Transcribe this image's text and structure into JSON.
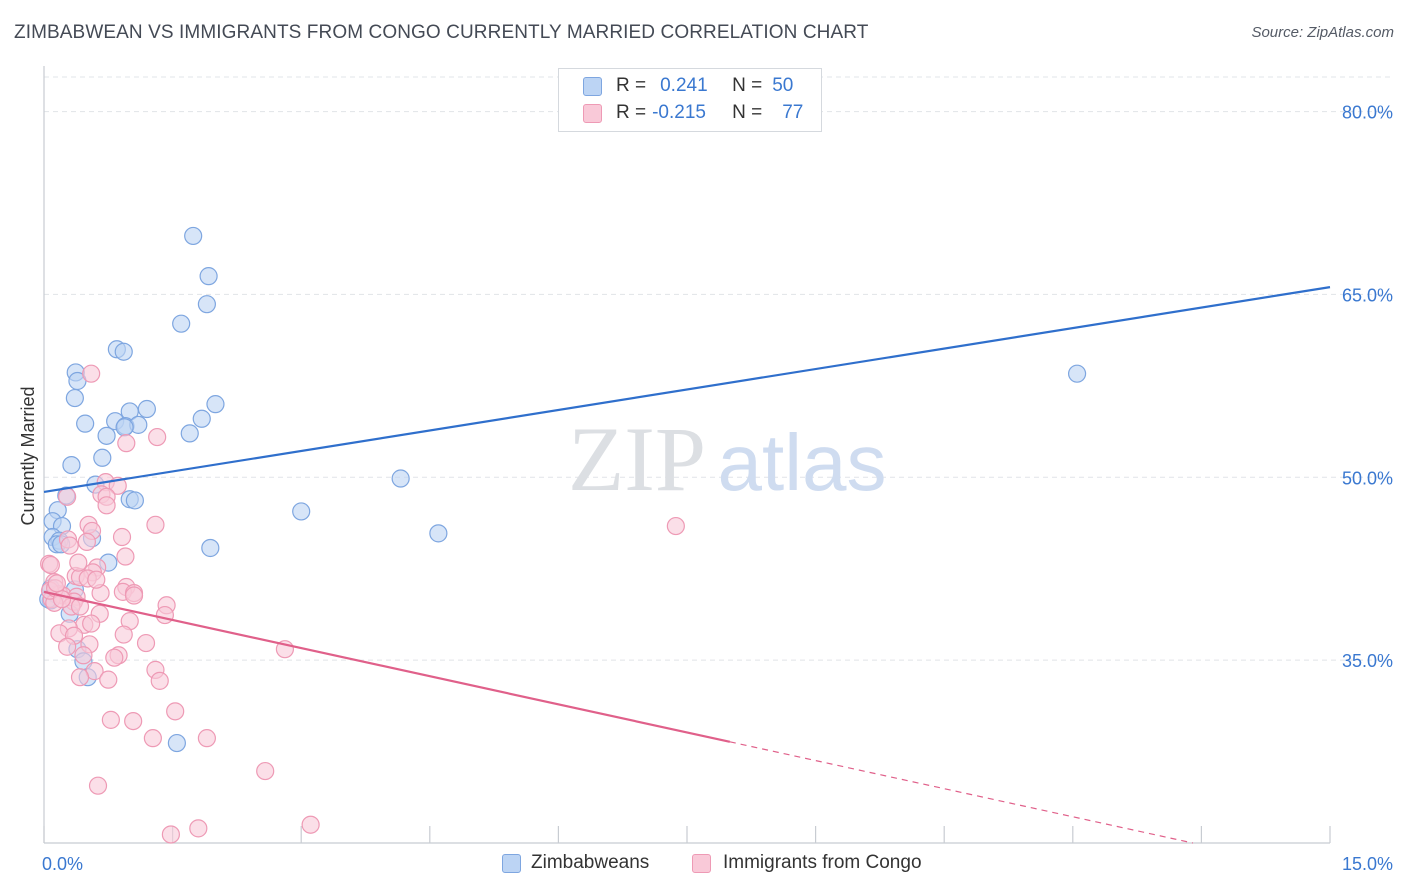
{
  "title": "ZIMBABWEAN VS IMMIGRANTS FROM CONGO CURRENTLY MARRIED CORRELATION CHART",
  "source": "Source: ZipAtlas.com",
  "watermark": {
    "zip": "ZIP",
    "atlas": "atlas"
  },
  "legend": {
    "blue": {
      "r_label": "R =",
      "r_value": "0.241",
      "n_label": "N =",
      "n_value": "50"
    },
    "pink": {
      "r_label": "R =",
      "r_value": "-0.215",
      "n_label": "N =",
      "n_value": "77"
    }
  },
  "bottom_legend": {
    "blue": "Zimbabweans",
    "pink": "Immigrants from Congo"
  },
  "colors": {
    "blue_fill": "#bcd4f4",
    "blue_stroke": "#7ea6e0",
    "blue_line": "#2f6fcc",
    "pink_fill": "#f9c9d8",
    "pink_stroke": "#ee9ab5",
    "pink_line": "#e0608a",
    "grid": "#e1e4e8",
    "tick_text": "#3a78d0"
  },
  "chart_data": {
    "type": "scatter",
    "title": "ZIMBABWEAN VS IMMIGRANTS FROM CONGO CURRENTLY MARRIED CORRELATION CHART",
    "xlabel": "",
    "ylabel": "Currently Married",
    "xlim": [
      0,
      15
    ],
    "ylim": [
      20,
      83
    ],
    "x_tick_labels": [
      {
        "value": 0,
        "label": "0.0%"
      },
      {
        "value": 15,
        "label": "15.0%"
      }
    ],
    "y_tick_labels": [
      {
        "value": 80,
        "label": "80.0%"
      },
      {
        "value": 65,
        "label": "65.0%"
      },
      {
        "value": 50,
        "label": "50.0%"
      },
      {
        "value": 35,
        "label": "35.0%"
      }
    ],
    "x_minor_ticks": [
      0,
      1.5,
      3,
      4.5,
      6,
      7.5,
      9,
      10.5,
      12,
      13.5,
      15
    ],
    "series": [
      {
        "name": "Zimbabweans",
        "color": "blue",
        "points": [
          [
            1.74,
            69.8
          ],
          [
            1.92,
            66.5
          ],
          [
            1.9,
            64.2
          ],
          [
            1.6,
            62.6
          ],
          [
            0.85,
            60.5
          ],
          [
            0.93,
            60.3
          ],
          [
            0.37,
            58.6
          ],
          [
            0.39,
            57.9
          ],
          [
            0.36,
            56.5
          ],
          [
            1.2,
            55.6
          ],
          [
            1.0,
            55.4
          ],
          [
            2.0,
            56.0
          ],
          [
            0.48,
            54.4
          ],
          [
            0.83,
            54.6
          ],
          [
            0.95,
            54.2
          ],
          [
            1.1,
            54.3
          ],
          [
            0.94,
            54.1
          ],
          [
            1.84,
            54.8
          ],
          [
            0.73,
            53.4
          ],
          [
            1.7,
            53.6
          ],
          [
            0.68,
            51.6
          ],
          [
            0.32,
            51.0
          ],
          [
            0.6,
            49.4
          ],
          [
            4.16,
            49.9
          ],
          [
            0.26,
            48.5
          ],
          [
            1.0,
            48.2
          ],
          [
            1.06,
            48.1
          ],
          [
            0.16,
            47.3
          ],
          [
            0.1,
            46.4
          ],
          [
            0.21,
            46.0
          ],
          [
            3.0,
            47.2
          ],
          [
            4.6,
            45.4
          ],
          [
            0.1,
            45.1
          ],
          [
            0.18,
            44.8
          ],
          [
            0.15,
            44.5
          ],
          [
            0.2,
            44.5
          ],
          [
            0.56,
            45.0
          ],
          [
            1.94,
            44.2
          ],
          [
            0.75,
            43.0
          ],
          [
            0.36,
            40.8
          ],
          [
            0.3,
            38.8
          ],
          [
            0.39,
            35.9
          ],
          [
            0.46,
            34.9
          ],
          [
            0.51,
            33.6
          ],
          [
            1.55,
            28.2
          ],
          [
            12.05,
            58.5
          ],
          [
            0.08,
            40.9
          ],
          [
            0.08,
            39.9
          ],
          [
            0.14,
            40.4
          ],
          [
            0.05,
            40.0
          ]
        ]
      },
      {
        "name": "Immigrants from Congo",
        "color": "pink",
        "points": [
          [
            0.55,
            58.5
          ],
          [
            1.32,
            53.3
          ],
          [
            0.96,
            52.8
          ],
          [
            0.72,
            49.6
          ],
          [
            0.86,
            49.3
          ],
          [
            0.27,
            48.4
          ],
          [
            0.67,
            48.6
          ],
          [
            0.73,
            48.4
          ],
          [
            0.73,
            47.7
          ],
          [
            1.3,
            46.1
          ],
          [
            0.52,
            46.1
          ],
          [
            0.56,
            45.6
          ],
          [
            0.91,
            45.1
          ],
          [
            0.28,
            44.9
          ],
          [
            0.5,
            44.7
          ],
          [
            0.3,
            44.4
          ],
          [
            0.95,
            43.5
          ],
          [
            0.06,
            42.9
          ],
          [
            0.08,
            42.8
          ],
          [
            0.62,
            42.6
          ],
          [
            0.57,
            42.2
          ],
          [
            0.37,
            41.9
          ],
          [
            0.42,
            41.8
          ],
          [
            0.51,
            41.7
          ],
          [
            0.12,
            41.4
          ],
          [
            0.96,
            41.0
          ],
          [
            0.92,
            40.6
          ],
          [
            1.05,
            40.5
          ],
          [
            0.66,
            40.5
          ],
          [
            0.18,
            40.4
          ],
          [
            0.22,
            40.3
          ],
          [
            0.09,
            40.0
          ],
          [
            0.38,
            40.2
          ],
          [
            0.35,
            39.8
          ],
          [
            0.32,
            39.4
          ],
          [
            0.12,
            39.7
          ],
          [
            0.42,
            39.4
          ],
          [
            1.43,
            39.5
          ],
          [
            1.41,
            38.7
          ],
          [
            0.65,
            38.8
          ],
          [
            1.0,
            38.2
          ],
          [
            0.47,
            37.9
          ],
          [
            0.29,
            37.6
          ],
          [
            0.18,
            37.2
          ],
          [
            0.35,
            37.0
          ],
          [
            0.93,
            37.1
          ],
          [
            0.53,
            36.3
          ],
          [
            1.19,
            36.4
          ],
          [
            0.46,
            35.4
          ],
          [
            0.87,
            35.4
          ],
          [
            2.81,
            35.9
          ],
          [
            0.82,
            35.2
          ],
          [
            0.59,
            34.1
          ],
          [
            1.3,
            34.2
          ],
          [
            0.42,
            33.6
          ],
          [
            0.75,
            33.4
          ],
          [
            1.35,
            33.3
          ],
          [
            1.53,
            30.8
          ],
          [
            0.78,
            30.1
          ],
          [
            1.04,
            30.0
          ],
          [
            1.27,
            28.6
          ],
          [
            1.9,
            28.6
          ],
          [
            2.58,
            25.9
          ],
          [
            0.63,
            24.7
          ],
          [
            1.48,
            20.7
          ],
          [
            1.8,
            21.2
          ],
          [
            3.11,
            21.5
          ],
          [
            7.37,
            46.0
          ],
          [
            0.07,
            40.7
          ],
          [
            0.13,
            40.9
          ],
          [
            0.21,
            40.0
          ],
          [
            0.55,
            38.0
          ],
          [
            1.05,
            40.3
          ],
          [
            0.61,
            41.6
          ],
          [
            0.27,
            36.1
          ],
          [
            0.4,
            43.0
          ],
          [
            0.15,
            41.3
          ]
        ]
      }
    ],
    "trend_lines": [
      {
        "series": "Zimbabweans",
        "x_start": 0,
        "y_start": 48.8,
        "x_end": 15,
        "y_end": 65.6
      },
      {
        "series": "Immigrants from Congo",
        "x_start": 0,
        "y_start": 40.6,
        "x_end": 8.0,
        "y_end": 28.3,
        "dashed_to_x": 13.4,
        "dashed_to_y": 20.0
      }
    ]
  }
}
